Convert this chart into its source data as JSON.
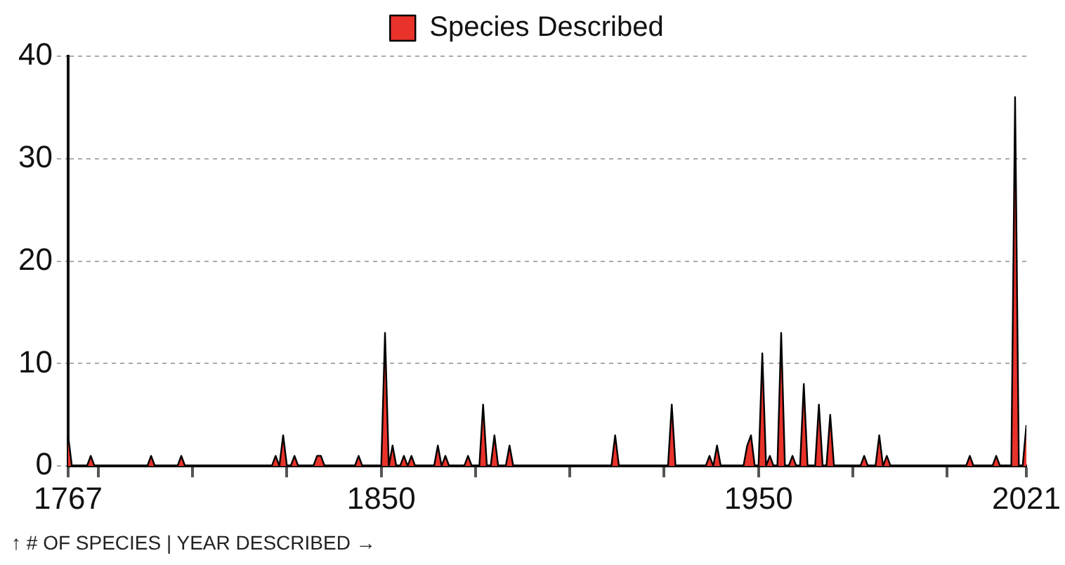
{
  "chart_data": {
    "type": "area",
    "legend": "top",
    "grid": "y",
    "marker": "none",
    "line_style": "solid",
    "annotations": [
      "↑ # OF SPECIES | YEAR DESCRIBED →"
    ],
    "xlim": [
      1767,
      2021
    ],
    "xticks": [
      1767,
      {
        "value": 1775,
        "label": null
      },
      {
        "value": 1800,
        "label": null
      },
      {
        "value": 1825,
        "label": null
      },
      1850,
      {
        "value": 1875,
        "label": null
      },
      {
        "value": 1900,
        "label": null
      },
      {
        "value": 1925,
        "label": null
      },
      1950,
      {
        "value": 1975,
        "label": null
      },
      {
        "value": 2000,
        "label": null
      },
      2021
    ],
    "ylim": [
      0,
      40
    ],
    "yticks": [
      0,
      10,
      20,
      30,
      40
    ],
    "series": [
      {
        "name": "Species Described",
        "color": "#e8322a",
        "x": [
          1767,
          1768,
          1772,
          1773,
          1774,
          1788,
          1789,
          1790,
          1796,
          1797,
          1798,
          1821,
          1822,
          1823,
          1824,
          1825,
          1826,
          1827,
          1828,
          1832,
          1833,
          1834,
          1835,
          1843,
          1844,
          1845,
          1850,
          1851,
          1852,
          1853,
          1854,
          1855,
          1856,
          1857,
          1858,
          1859,
          1864,
          1865,
          1866,
          1867,
          1868,
          1872,
          1873,
          1874,
          1876,
          1877,
          1878,
          1879,
          1880,
          1881,
          1883,
          1884,
          1885,
          1911,
          1912,
          1913,
          1926,
          1927,
          1928,
          1936,
          1937,
          1938,
          1939,
          1940,
          1946,
          1947,
          1948,
          1949,
          1950,
          1951,
          1952,
          1953,
          1954,
          1955,
          1956,
          1957,
          1958,
          1959,
          1960,
          1961,
          1962,
          1963,
          1965,
          1966,
          1967,
          1968,
          1969,
          1970,
          1977,
          1978,
          1979,
          1981,
          1982,
          1983,
          1984,
          1985,
          2005,
          2006,
          2007,
          2012,
          2013,
          2014,
          2017,
          2018,
          2019,
          2020,
          2021
        ],
        "values": [
          3,
          0,
          0,
          1,
          0,
          0,
          1,
          0,
          0,
          1,
          0,
          0,
          1,
          0,
          3,
          0,
          0,
          1,
          0,
          0,
          1,
          1,
          0,
          0,
          1,
          0,
          0,
          13,
          0,
          2,
          0,
          0,
          1,
          0,
          1,
          0,
          0,
          2,
          0,
          1,
          0,
          0,
          1,
          0,
          0,
          6,
          0,
          0,
          3,
          0,
          0,
          2,
          0,
          0,
          3,
          0,
          0,
          6,
          0,
          0,
          1,
          0,
          2,
          0,
          0,
          2,
          3,
          0,
          0,
          11,
          0,
          1,
          0,
          0,
          13,
          0,
          0,
          1,
          0,
          0,
          8,
          0,
          0,
          6,
          0,
          0,
          5,
          0,
          0,
          1,
          0,
          0,
          3,
          0,
          1,
          0,
          0,
          1,
          0,
          0,
          1,
          0,
          0,
          36,
          0,
          0,
          4
        ]
      }
    ]
  }
}
